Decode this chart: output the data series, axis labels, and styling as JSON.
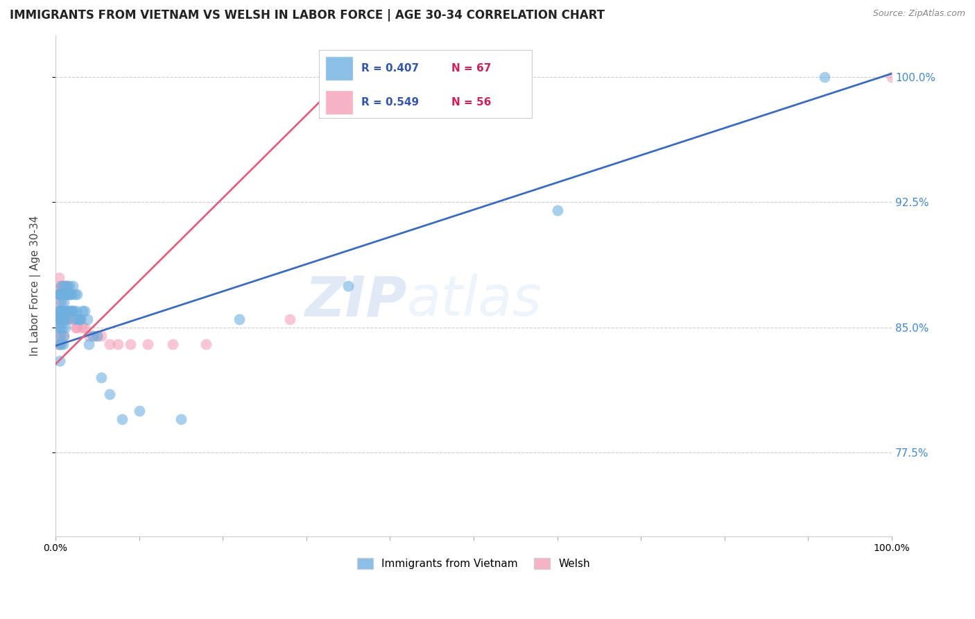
{
  "title": "IMMIGRANTS FROM VIETNAM VS WELSH IN LABOR FORCE | AGE 30-34 CORRELATION CHART",
  "source": "Source: ZipAtlas.com",
  "ylabel": "In Labor Force | Age 30-34",
  "xlim": [
    0.0,
    1.0
  ],
  "ylim": [
    0.725,
    1.025
  ],
  "yticks": [
    0.775,
    0.85,
    0.925,
    1.0
  ],
  "ytick_labels": [
    "77.5%",
    "85.0%",
    "92.5%",
    "100.0%"
  ],
  "xticks": [
    0.0,
    0.1,
    0.2,
    0.3,
    0.4,
    0.5,
    0.6,
    0.7,
    0.8,
    0.9,
    1.0
  ],
  "xtick_labels": [
    "0.0%",
    "",
    "",
    "",
    "",
    "",
    "",
    "",
    "",
    "",
    "100.0%"
  ],
  "series1_label": "Immigrants from Vietnam",
  "series1_color": "#6eb0e0",
  "series1_R": 0.407,
  "series1_N": 67,
  "series2_label": "Welsh",
  "series2_color": "#f4a0b8",
  "series2_R": 0.549,
  "series2_N": 56,
  "blue_line_color": "#3a6bbf",
  "pink_line_color": "#e06080",
  "watermark_zip": "ZIP",
  "watermark_atlas": "atlas",
  "background_color": "#ffffff",
  "grid_color": "#cccccc",
  "vietnam_x": [
    0.002,
    0.003,
    0.003,
    0.004,
    0.004,
    0.005,
    0.005,
    0.005,
    0.005,
    0.005,
    0.006,
    0.006,
    0.006,
    0.007,
    0.007,
    0.007,
    0.007,
    0.008,
    0.008,
    0.008,
    0.009,
    0.009,
    0.009,
    0.01,
    0.01,
    0.01,
    0.01,
    0.011,
    0.011,
    0.012,
    0.012,
    0.012,
    0.013,
    0.013,
    0.014,
    0.015,
    0.015,
    0.016,
    0.016,
    0.017,
    0.018,
    0.019,
    0.02,
    0.021,
    0.022,
    0.023,
    0.024,
    0.025,
    0.026,
    0.027,
    0.028,
    0.03,
    0.032,
    0.035,
    0.038,
    0.04,
    0.045,
    0.05,
    0.055,
    0.065,
    0.08,
    0.1,
    0.15,
    0.22,
    0.35,
    0.6,
    0.92
  ],
  "vietnam_y": [
    0.855,
    0.87,
    0.86,
    0.87,
    0.85,
    0.86,
    0.855,
    0.845,
    0.84,
    0.83,
    0.87,
    0.86,
    0.85,
    0.875,
    0.865,
    0.855,
    0.84,
    0.87,
    0.86,
    0.85,
    0.87,
    0.855,
    0.84,
    0.875,
    0.865,
    0.855,
    0.845,
    0.87,
    0.855,
    0.87,
    0.86,
    0.85,
    0.875,
    0.86,
    0.87,
    0.87,
    0.855,
    0.87,
    0.86,
    0.875,
    0.86,
    0.87,
    0.86,
    0.875,
    0.86,
    0.87,
    0.855,
    0.86,
    0.87,
    0.855,
    0.855,
    0.855,
    0.86,
    0.86,
    0.855,
    0.84,
    0.845,
    0.845,
    0.82,
    0.81,
    0.795,
    0.8,
    0.795,
    0.855,
    0.875,
    0.92,
    1.0
  ],
  "welsh_x": [
    0.003,
    0.003,
    0.003,
    0.004,
    0.004,
    0.004,
    0.005,
    0.005,
    0.005,
    0.006,
    0.006,
    0.006,
    0.007,
    0.007,
    0.007,
    0.008,
    0.008,
    0.009,
    0.009,
    0.01,
    0.01,
    0.01,
    0.011,
    0.011,
    0.012,
    0.012,
    0.013,
    0.013,
    0.014,
    0.014,
    0.015,
    0.016,
    0.017,
    0.018,
    0.019,
    0.02,
    0.021,
    0.022,
    0.024,
    0.026,
    0.028,
    0.03,
    0.032,
    0.035,
    0.04,
    0.045,
    0.05,
    0.055,
    0.065,
    0.075,
    0.09,
    0.11,
    0.14,
    0.18,
    0.28,
    1.0
  ],
  "welsh_y": [
    0.87,
    0.855,
    0.84,
    0.88,
    0.865,
    0.85,
    0.87,
    0.855,
    0.84,
    0.875,
    0.86,
    0.845,
    0.875,
    0.86,
    0.845,
    0.875,
    0.855,
    0.875,
    0.855,
    0.875,
    0.86,
    0.845,
    0.875,
    0.855,
    0.875,
    0.855,
    0.875,
    0.855,
    0.875,
    0.855,
    0.87,
    0.87,
    0.86,
    0.87,
    0.86,
    0.86,
    0.855,
    0.855,
    0.85,
    0.85,
    0.855,
    0.855,
    0.85,
    0.85,
    0.845,
    0.845,
    0.845,
    0.845,
    0.84,
    0.84,
    0.84,
    0.84,
    0.84,
    0.84,
    0.855,
    1.0
  ],
  "blue_line_x0": 0.0,
  "blue_line_y0": 0.839,
  "blue_line_x1": 1.0,
  "blue_line_y1": 1.002,
  "pink_line_x0": 0.0,
  "pink_line_y0": 0.828,
  "pink_line_x1": 0.35,
  "pink_line_y1": 1.002
}
